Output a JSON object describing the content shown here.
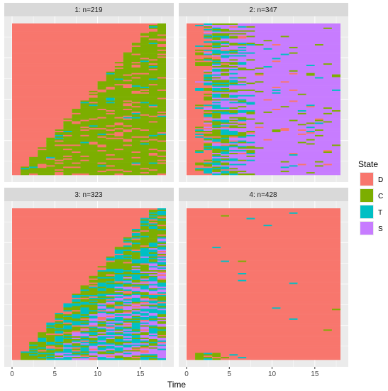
{
  "chart_data": {
    "type": "heatmap",
    "description_type": "sequence index plot, faceted",
    "xlabel": "Time",
    "xlim": [
      0,
      18
    ],
    "x_ticks": [
      0,
      5,
      10,
      15
    ],
    "legend": {
      "title": "State",
      "placement": "right",
      "entries": [
        {
          "label": "D",
          "color": "#F8766D"
        },
        {
          "label": "C",
          "color": "#7CAE00"
        },
        {
          "label": "T",
          "color": "#00BFC4"
        },
        {
          "label": "S",
          "color": "#C77CFF"
        }
      ]
    },
    "facets": [
      {
        "label": "1: n=219",
        "n": 219,
        "dominant_states": [
          "D",
          "C"
        ]
      },
      {
        "label": "2: n=347",
        "n": 347,
        "dominant_states": [
          "D",
          "C",
          "T",
          "S"
        ]
      },
      {
        "label": "3: n=323",
        "n": 323,
        "dominant_states": [
          "D",
          "C",
          "T",
          "S"
        ]
      },
      {
        "label": "4: n=428",
        "n": 428,
        "dominant_states": [
          "D",
          "C",
          "T"
        ]
      }
    ]
  }
}
